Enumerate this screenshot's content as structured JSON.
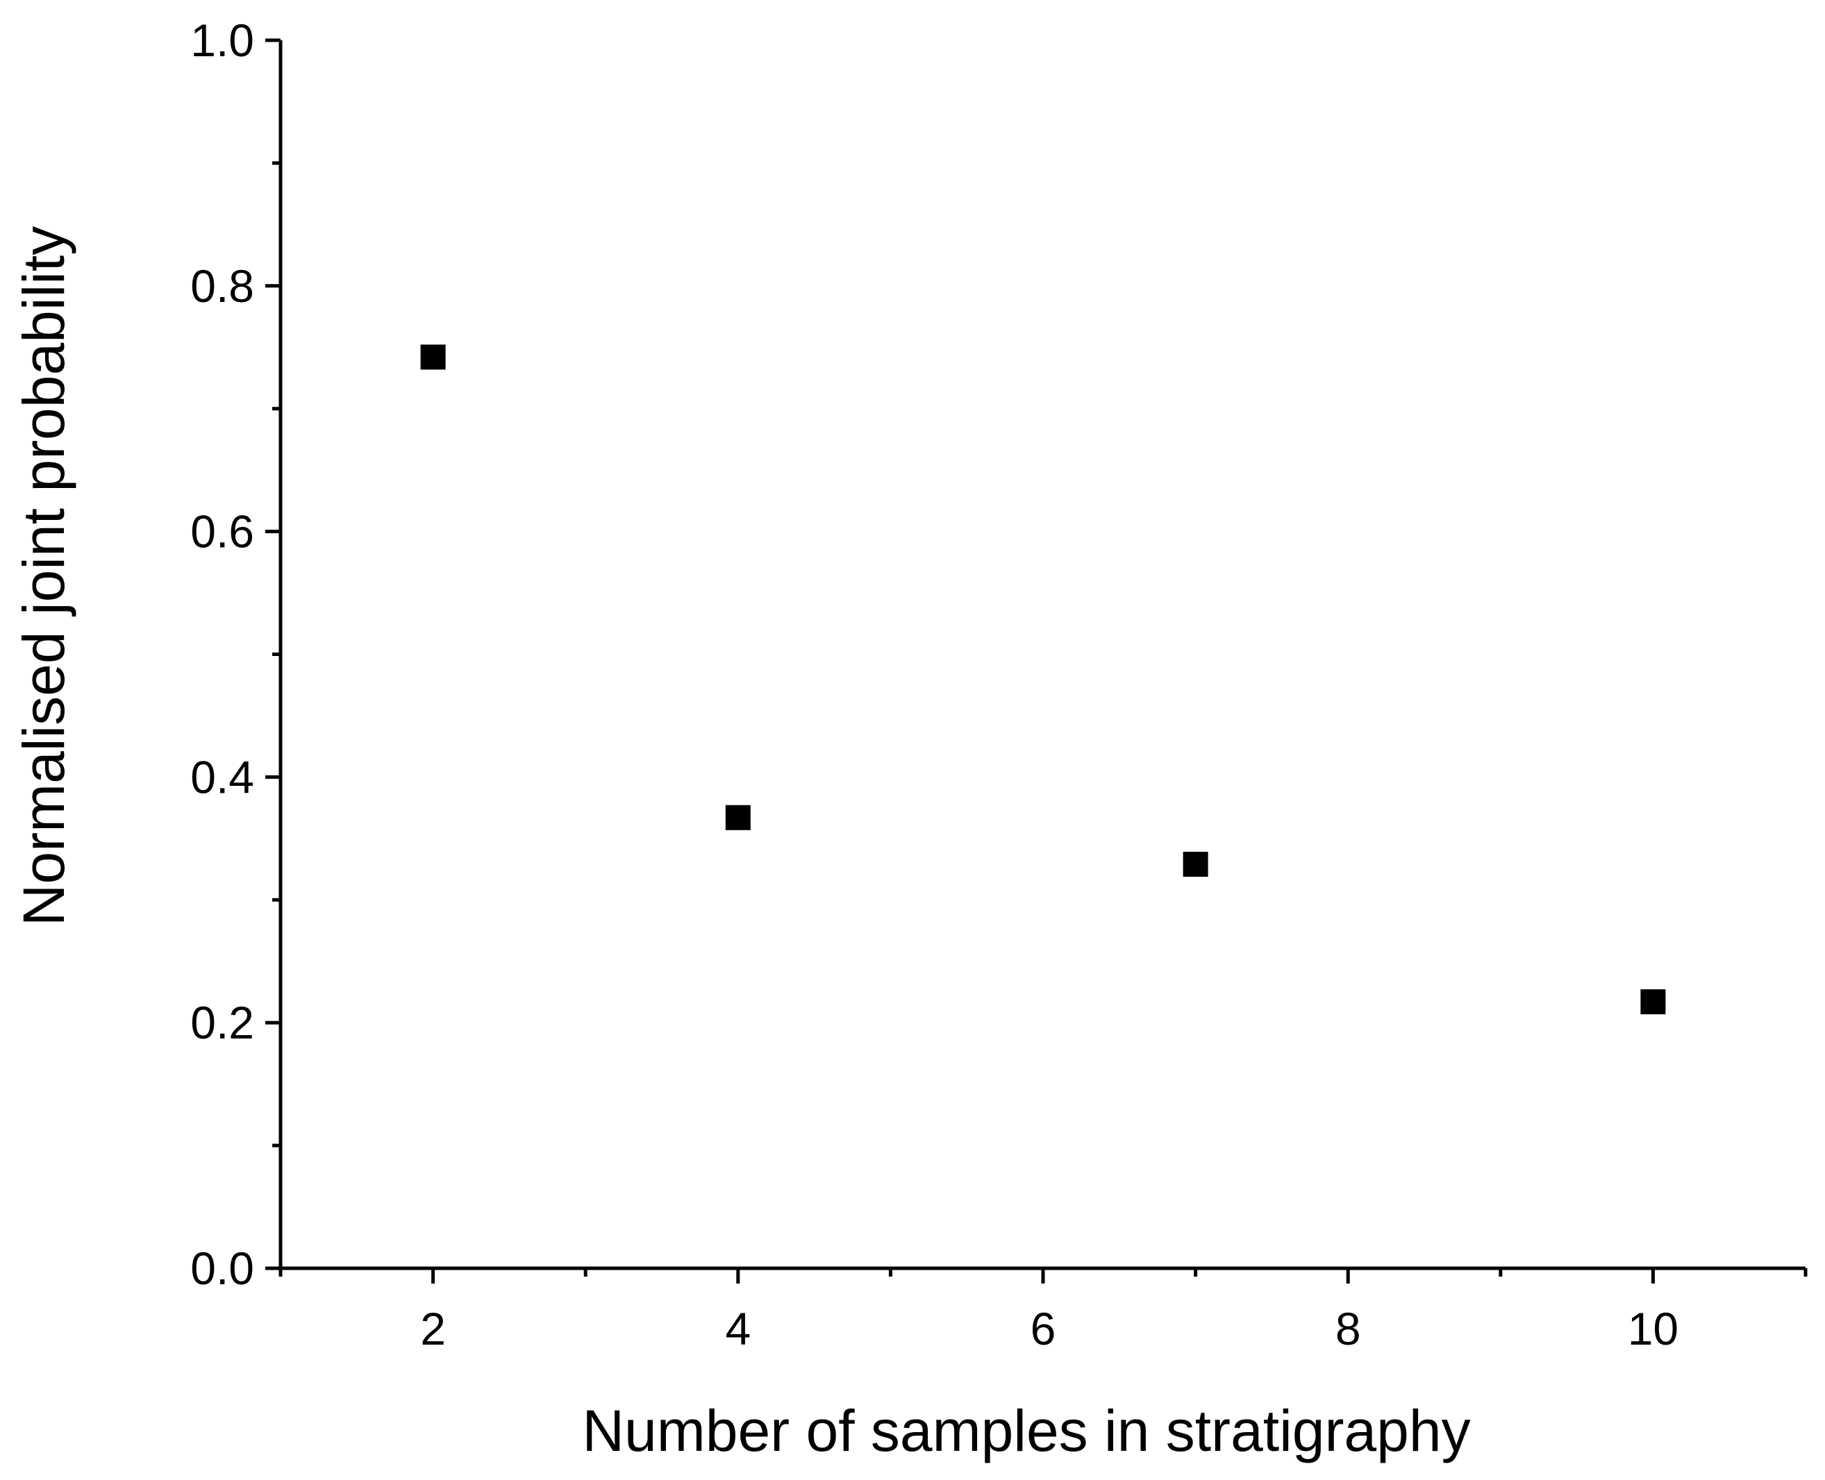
{
  "chart_data": {
    "type": "scatter",
    "title": "",
    "xlabel": "Number of samples in stratigraphy",
    "ylabel": "Normalised joint probability",
    "xlim": [
      1,
      11
    ],
    "ylim": [
      0.0,
      1.0
    ],
    "x_ticks": [
      2,
      4,
      6,
      8,
      10
    ],
    "x_tick_labels": [
      "2",
      "4",
      "6",
      "8",
      "10"
    ],
    "x_minor_ticks": [
      1,
      3,
      5,
      7,
      9,
      11
    ],
    "y_ticks": [
      0.0,
      0.2,
      0.4,
      0.6,
      0.8,
      1.0
    ],
    "y_tick_labels": [
      "0.0",
      "0.2",
      "0.4",
      "0.6",
      "0.8",
      "1.0"
    ],
    "y_minor_ticks": [
      0.1,
      0.3,
      0.5,
      0.7,
      0.9
    ],
    "grid": false,
    "legend": "none",
    "marker": "square",
    "marker_color": "#000000",
    "series": [
      {
        "x": [
          2,
          4,
          7,
          10
        ],
        "y": [
          0.742,
          0.367,
          0.329,
          0.217
        ]
      }
    ]
  }
}
